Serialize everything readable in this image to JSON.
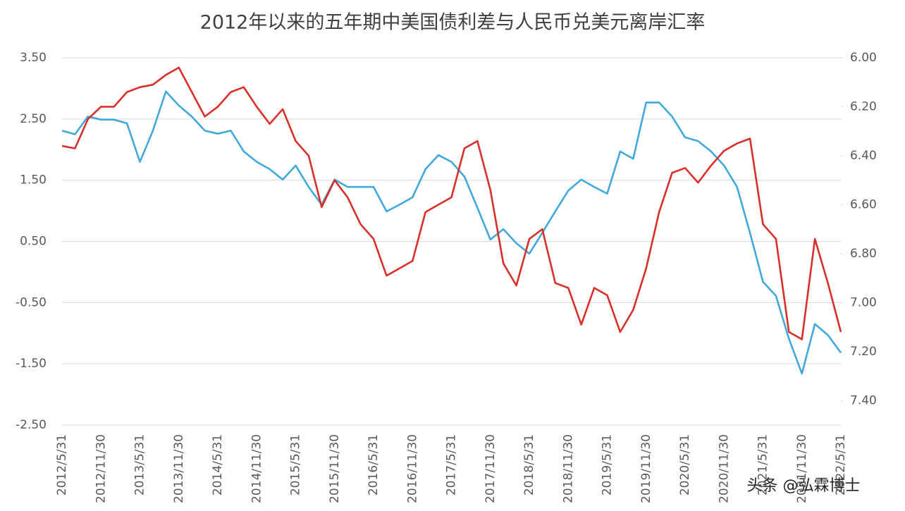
{
  "chart_data": {
    "type": "line",
    "title": "2012年以来的五年期中美国债利差与人民币兑美元离岸汇率",
    "watermark": "头条 @弘霖博士",
    "categories": [
      "2012/5/31",
      null,
      null,
      "2012/11/30",
      null,
      null,
      "2013/5/31",
      null,
      null,
      "2013/11/30",
      null,
      null,
      "2014/5/31",
      null,
      null,
      "2014/11/30",
      null,
      null,
      "2015/5/31",
      null,
      null,
      "2015/11/30",
      null,
      null,
      "2016/5/31",
      null,
      null,
      "2016/11/30",
      null,
      null,
      "2017/5/31",
      null,
      null,
      "2017/11/30",
      null,
      null,
      "2018/5/31",
      null,
      null,
      "2018/11/30",
      null,
      null,
      "2019/5/31",
      null,
      null,
      "2019/11/30",
      null,
      null,
      "2020/5/31",
      null,
      null,
      "2020/11/30",
      null,
      null,
      "2021/5/31",
      null,
      null,
      "2021/11/30",
      null,
      null,
      "2022/5/31"
    ],
    "ylim": [
      -2.5,
      3.5
    ],
    "yticks": [
      {
        "value": 3.5,
        "label": "3.50"
      },
      {
        "value": 2.5,
        "label": "2.50"
      },
      {
        "value": 1.5,
        "label": "1.50"
      },
      {
        "value": 0.5,
        "label": "0.50"
      },
      {
        "value": -0.5,
        "label": "-0.50"
      },
      {
        "value": -1.5,
        "label": "-1.50"
      },
      {
        "value": -2.5,
        "label": "-2.50"
      }
    ],
    "y2lim": [
      6.0,
      7.5
    ],
    "y2_inverted": true,
    "y2ticks": [
      {
        "value": 6.0,
        "label": "6.00"
      },
      {
        "value": 6.2,
        "label": "6.20"
      },
      {
        "value": 6.4,
        "label": "6.40"
      },
      {
        "value": 6.6,
        "label": "6.60"
      },
      {
        "value": 6.8,
        "label": "6.80"
      },
      {
        "value": 7.0,
        "label": "7.00"
      },
      {
        "value": 7.2,
        "label": "7.20"
      },
      {
        "value": 7.4,
        "label": "7.40"
      }
    ],
    "grid": true,
    "series": [
      {
        "color": "#41a9dc",
        "values": [
          2.31,
          2.25,
          2.54,
          2.49,
          2.49,
          2.43,
          1.8,
          2.31,
          2.95,
          2.72,
          2.54,
          2.31,
          2.26,
          2.31,
          1.97,
          1.8,
          1.68,
          1.51,
          1.74,
          1.39,
          1.1,
          1.51,
          1.39,
          1.39,
          1.39,
          0.99,
          1.1,
          1.22,
          1.68,
          1.91,
          1.8,
          1.56,
          1.05,
          0.53,
          0.7,
          0.47,
          0.3,
          0.64,
          0.99,
          1.33,
          1.51,
          1.39,
          1.28,
          1.97,
          1.85,
          2.77,
          2.77,
          2.54,
          2.2,
          2.14,
          1.97,
          1.74,
          1.39,
          0.64,
          -0.16,
          -0.39,
          -1.09,
          -1.66,
          -0.85,
          -1.03,
          -1.32
        ]
      },
      {
        "color": "#d9302a",
        "axis": "y2",
        "values": [
          6.36,
          6.37,
          6.25,
          6.2,
          6.2,
          6.14,
          6.12,
          6.11,
          6.07,
          6.04,
          6.14,
          6.24,
          6.2,
          6.14,
          6.12,
          6.2,
          6.27,
          6.21,
          6.34,
          6.4,
          6.61,
          6.5,
          6.57,
          6.68,
          6.74,
          6.89,
          6.86,
          6.83,
          6.63,
          6.6,
          6.57,
          6.37,
          6.34,
          6.54,
          6.84,
          6.93,
          6.74,
          6.7,
          6.92,
          6.94,
          7.09,
          6.94,
          6.97,
          7.12,
          7.03,
          6.86,
          6.63,
          6.47,
          6.45,
          6.51,
          6.44,
          6.38,
          6.35,
          6.33,
          6.68,
          6.74,
          7.12,
          7.15,
          6.74,
          6.92,
          7.12
        ]
      }
    ]
  }
}
